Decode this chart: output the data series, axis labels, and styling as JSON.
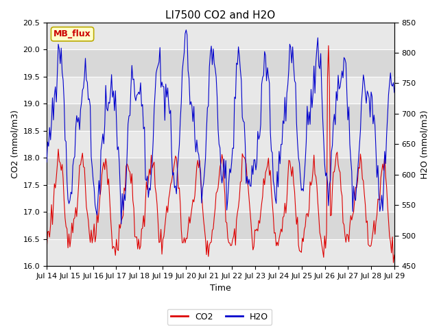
{
  "title": "LI7500 CO2 and H2O",
  "xlabel": "Time",
  "ylabel_left": "CO2 (mmol/m3)",
  "ylabel_right": "H2O (mmol/m3)",
  "ylim_left": [
    16.0,
    20.5
  ],
  "ylim_right": [
    450,
    850
  ],
  "yticks_left": [
    16.0,
    16.5,
    17.0,
    17.5,
    18.0,
    18.5,
    19.0,
    19.5,
    20.0,
    20.5
  ],
  "yticks_right": [
    450,
    500,
    550,
    600,
    650,
    700,
    750,
    800,
    850
  ],
  "xtick_labels": [
    "Jul 14",
    "Jul 15",
    "Jul 16",
    "Jul 17",
    "Jul 18",
    "Jul 19",
    "Jul 20",
    "Jul 21",
    "Jul 22",
    "Jul 23",
    "Jul 24",
    "Jul 25",
    "Jul 26",
    "Jul 27",
    "Jul 28",
    "Jul 29"
  ],
  "watermark_text": "MB_flux",
  "watermark_bg": "#ffffcc",
  "watermark_border": "#bbaa00",
  "watermark_text_color": "#cc0000",
  "co2_color": "#dd0000",
  "h2o_color": "#0000cc",
  "plot_bg_light": "#e8e8e8",
  "plot_bg_dark": "#d0d0d0",
  "legend_co2": "CO2",
  "legend_h2o": "H2O",
  "title_fontsize": 11,
  "axis_label_fontsize": 9,
  "tick_fontsize": 8,
  "watermark_fontsize": 9
}
